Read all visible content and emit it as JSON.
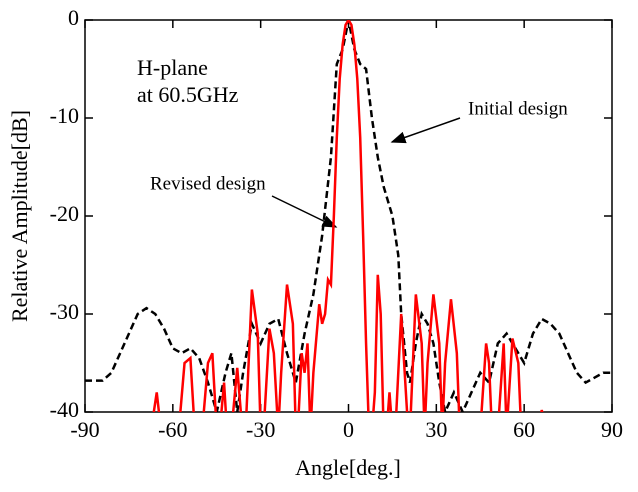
{
  "chart_data": {
    "type": "line",
    "xlabel": "Angle[deg.]",
    "ylabel": "Relative Amplitude[dB]",
    "annotations": [
      "H-plane",
      "at 60.5GHz",
      "Initial design",
      "Revised design"
    ],
    "xlim": [
      -90,
      90
    ],
    "xticks": [
      -90,
      -60,
      -30,
      0,
      30,
      60,
      90
    ],
    "ylim": [
      -40,
      0
    ],
    "yticks": [
      -40,
      -30,
      -20,
      -10,
      0
    ],
    "series": [
      {
        "name": "Initial design",
        "color": "#000000",
        "dash": true,
        "x": [
          -90,
          -84,
          -81,
          -78,
          -75,
          -72,
          -69,
          -66,
          -63,
          -60,
          -57,
          -54,
          -51,
          -48,
          -45,
          -42,
          -40,
          -38,
          -36,
          -33,
          -30,
          -27,
          -24,
          -21,
          -18,
          -15,
          -12,
          -9,
          -6,
          -4,
          -2,
          0,
          2,
          4,
          6,
          8,
          10,
          12,
          15,
          17,
          18,
          20,
          21,
          23,
          25,
          27,
          29,
          31,
          33,
          36,
          39,
          42,
          45,
          48,
          51,
          54,
          57,
          60,
          63,
          66,
          69,
          72,
          75,
          78,
          81,
          84,
          87,
          90
        ],
        "values": [
          -36.8,
          -36.8,
          -36,
          -34,
          -32,
          -30,
          -29.4,
          -30,
          -31.5,
          -33.5,
          -34,
          -33.5,
          -34.5,
          -37,
          -40,
          -36,
          -34,
          -40,
          -36,
          -31,
          -33,
          -31,
          -30.5,
          -34,
          -37,
          -32,
          -28,
          -22,
          -14,
          -4.5,
          -3,
          0,
          -3,
          -4.5,
          -5,
          -10,
          -14,
          -17,
          -20,
          -24,
          -30,
          -36,
          -37,
          -33,
          -30,
          -31,
          -33,
          -37,
          -40,
          -38,
          -40,
          -38,
          -36,
          -37,
          -33,
          -32,
          -33.5,
          -35,
          -32,
          -30.5,
          -31,
          -32,
          -34,
          -36,
          -37,
          -36.5,
          -36,
          -36
        ]
      },
      {
        "name": "Revised design",
        "color": "#ff0000",
        "dash": false,
        "x": [
          -67,
          -65.5,
          -64,
          -58,
          -56,
          -54,
          -52.5,
          -50,
          -48,
          -46.5,
          -45,
          -44,
          -42.5,
          -41.5,
          -40,
          -38,
          -36.5,
          -35,
          -33,
          -31,
          -30,
          -29,
          -27,
          -25.5,
          -24,
          -23,
          -21,
          -19,
          -18,
          -17,
          -16,
          -15,
          -14,
          -13,
          -12,
          -10,
          -9,
          -8,
          -7,
          -6,
          -5,
          -4,
          -3,
          -2,
          -1,
          0,
          1,
          2,
          3,
          4,
          5,
          6,
          7,
          8,
          9,
          10,
          11,
          12,
          13,
          14,
          15,
          16,
          18,
          20,
          21,
          23,
          25,
          26,
          27,
          29,
          31,
          32,
          33,
          35,
          37,
          38,
          45,
          47,
          48,
          49,
          51,
          53,
          54,
          56,
          58,
          59,
          65,
          66,
          67
        ],
        "values": [
          -41,
          -38,
          -42,
          -42,
          -35,
          -34.5,
          -42,
          -42,
          -35,
          -34,
          -42,
          -42,
          -37,
          -42,
          -42,
          -35.5,
          -41,
          -41,
          -27.5,
          -32,
          -42,
          -42,
          -31.5,
          -34,
          -42,
          -36,
          -27,
          -31,
          -42,
          -40,
          -34,
          -36,
          -33,
          -42,
          -36,
          -29,
          -31,
          -30,
          -26.5,
          -27,
          -20,
          -12,
          -6,
          -2.5,
          -0.5,
          0,
          -0.5,
          -2.5,
          -6,
          -12,
          -22,
          -33,
          -42,
          -42,
          -38,
          -26,
          -30,
          -42,
          -42,
          -38,
          -42,
          -42,
          -30,
          -40,
          -42,
          -28,
          -33,
          -42,
          -35,
          -28,
          -33,
          -42,
          -35,
          -28.5,
          -34,
          -42,
          -42,
          -33,
          -35,
          -42,
          -42,
          -33,
          -42,
          -32.5,
          -35,
          -42,
          -42,
          -39.8,
          -41
        ]
      }
    ]
  }
}
